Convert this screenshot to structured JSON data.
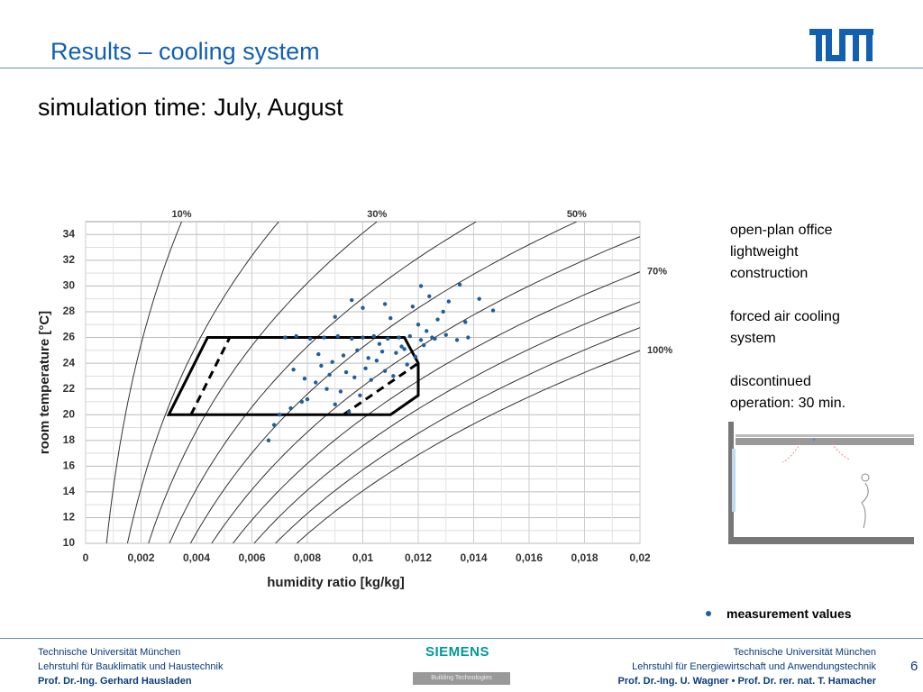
{
  "header": {
    "title": "Results – cooling system",
    "subtitle": "simulation time: July, August"
  },
  "chart_data": {
    "type": "scatter",
    "x_label": "humidity ratio [kg/kg]",
    "y_label": "room temperature [°C]",
    "xlim": [
      0,
      0.02
    ],
    "ylim": [
      10,
      35
    ],
    "xticks": [
      0,
      {
        "value": 0.002,
        "label": "0,002"
      },
      {
        "value": 0.004,
        "label": "0,004"
      },
      {
        "value": 0.006,
        "label": "0,006"
      },
      {
        "value": 0.008,
        "label": "0,008"
      },
      {
        "value": 0.01,
        "label": "0,01"
      },
      {
        "value": 0.012,
        "label": "0,012"
      },
      {
        "value": 0.014,
        "label": "0,014"
      },
      {
        "value": 0.016,
        "label": "0,016"
      },
      {
        "value": 0.018,
        "label": "0,018"
      },
      {
        "value": 0.02,
        "label": "0,02"
      }
    ],
    "yticks": [
      10,
      12,
      14,
      16,
      18,
      20,
      22,
      24,
      26,
      28,
      30,
      32,
      34
    ],
    "grid": true,
    "rh_curves": [
      10,
      20,
      30,
      40,
      50,
      60,
      70,
      80,
      90,
      100
    ],
    "rh_labels": [
      {
        "value": 10,
        "label": "10%"
      },
      {
        "value": 30,
        "label": "30%"
      },
      {
        "value": 50,
        "label": "50%"
      },
      {
        "value": 70,
        "label": "70%"
      },
      {
        "value": 100,
        "label": "100%"
      }
    ],
    "comfort_zone": {
      "x": [
        0.003,
        0.0044,
        0.0115,
        0.012,
        0.012,
        0.011
      ],
      "y": [
        20,
        26,
        26,
        24,
        21.5,
        20
      ]
    },
    "comfort_dashed": [
      {
        "x": [
          0.0038,
          0.0052
        ],
        "y": [
          20,
          26
        ]
      },
      {
        "x": [
          0.0093,
          0.012
        ],
        "y": [
          20,
          24
        ]
      }
    ],
    "series": [
      {
        "name": "measurement values",
        "color": "#1f5f9e",
        "x": [
          0.0095,
          0.0078,
          0.0083,
          0.0088,
          0.0092,
          0.0097,
          0.0101,
          0.0105,
          0.0108,
          0.0112,
          0.0115,
          0.0119,
          0.0122,
          0.0126,
          0.013,
          0.0134,
          0.0138,
          0.0072,
          0.0076,
          0.0081,
          0.0086,
          0.0091,
          0.0096,
          0.01,
          0.0104,
          0.0109,
          0.0113,
          0.0117,
          0.0121,
          0.0125,
          0.011,
          0.0118,
          0.0124,
          0.0129,
          0.0135,
          0.0142,
          0.0147,
          0.01,
          0.009,
          0.0087,
          0.008,
          0.0074,
          0.0068,
          0.0066,
          0.007,
          0.0085,
          0.0093,
          0.0098,
          0.0103,
          0.0107,
          0.0099,
          0.0111,
          0.0116,
          0.012,
          0.0127,
          0.0131,
          0.0094,
          0.0089,
          0.0084,
          0.0079,
          0.0106,
          0.0114,
          0.0102,
          0.0123,
          0.0137,
          0.0096,
          0.0108,
          0.0121,
          0.0075,
          0.009
        ],
        "values": [
          20.2,
          21.0,
          22.5,
          23.1,
          21.8,
          22.9,
          23.6,
          24.2,
          23.4,
          24.8,
          25.1,
          24.5,
          25.4,
          25.9,
          26.2,
          25.8,
          26.0,
          26.0,
          26.1,
          25.9,
          26.0,
          26.1,
          25.9,
          26.0,
          26.1,
          25.9,
          26.0,
          26.1,
          25.8,
          26.0,
          27.5,
          28.4,
          29.2,
          28.0,
          30.1,
          29.0,
          28.1,
          28.3,
          27.6,
          22.0,
          21.2,
          20.5,
          19.2,
          18.0,
          20.0,
          23.8,
          24.6,
          25.0,
          22.7,
          24.9,
          21.5,
          23.0,
          23.9,
          27.0,
          27.4,
          28.8,
          23.3,
          24.1,
          24.7,
          22.8,
          25.5,
          25.3,
          24.4,
          26.5,
          27.2,
          28.9,
          28.6,
          30.0,
          23.5,
          20.8
        ]
      }
    ]
  },
  "notes": [
    "open-plan office",
    "lightweight",
    "construction",
    "forced air cooling",
    "system",
    "discontinued",
    "operation: 30 min."
  ],
  "footer": {
    "left": [
      "Technische Universität München",
      "Lehrstuhl für Bauklimatik und Haustechnik",
      "Prof. Dr.-Ing. Gerhard Hausladen"
    ],
    "brand": "SIEMENS",
    "brand_sub": "Building Technologies",
    "right": [
      "Technische Universität München",
      "Lehrstuhl für Energiewirtschaft und Anwendungstechnik",
      "Prof. Dr.-Ing. U. Wagner • Prof. Dr. rer. nat. T. Hamacher"
    ],
    "page": 6
  }
}
